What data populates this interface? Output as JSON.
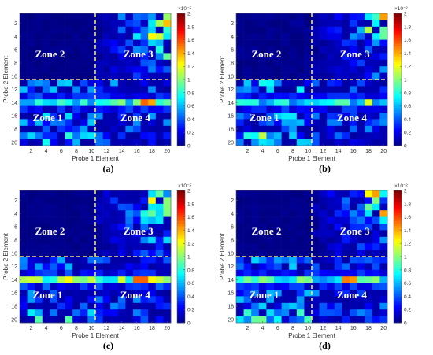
{
  "panels": [
    {
      "caption": "(a)"
    },
    {
      "caption": "(b)"
    },
    {
      "caption": "(c)"
    },
    {
      "caption": "(d)"
    }
  ],
  "chart_data": {
    "type": "heatmap",
    "xlabel": "Probe 1 Element",
    "ylabel": "Probe 2 Element",
    "x_ticks": [
      2,
      4,
      6,
      8,
      10,
      12,
      14,
      16,
      18,
      20
    ],
    "y_ticks": [
      2,
      4,
      6,
      8,
      10,
      12,
      14,
      16,
      18,
      20
    ],
    "grid_size": 20,
    "colorbar": {
      "min": 0,
      "max": 2,
      "ticks": [
        0,
        0.2,
        0.4,
        0.6,
        0.8,
        1,
        1.2,
        1.4,
        1.6,
        1.8,
        2
      ],
      "exponent_label": "×10⁻²",
      "colormap": "jet"
    },
    "divider_x": 10.5,
    "divider_y": 10.5,
    "divider_color": "#f5e76a",
    "zones": [
      {
        "label": "Zone 2",
        "x": 4.5,
        "y": 6.6
      },
      {
        "label": "Zone 3",
        "x": 16.2,
        "y": 6.6
      },
      {
        "label": "Zone 1",
        "x": 4.2,
        "y": 16.2
      },
      {
        "label": "Zone 4",
        "x": 15.8,
        "y": 16.2
      }
    ],
    "panels": [
      {
        "id": "a",
        "hot_rows": [
          14
        ],
        "hot_row_level": 0.45,
        "hot_row_peak_cols": [
          17,
          18
        ],
        "zone3_level": 0.5,
        "zone1_level": 0.25,
        "zone4_level": 0.2,
        "zone2_level": 0.02,
        "seed": 11
      },
      {
        "id": "b",
        "hot_rows": [
          14
        ],
        "hot_row_level": 0.42,
        "hot_row_peak_cols": [
          18
        ],
        "zone3_level": 0.45,
        "zone1_level": 0.28,
        "zone4_level": 0.18,
        "zone2_level": 0.03,
        "seed": 23
      },
      {
        "id": "c",
        "hot_rows": [
          14
        ],
        "hot_row_level": 0.55,
        "hot_row_peak_cols": [
          16,
          17,
          18
        ],
        "zone3_level": 0.5,
        "zone1_level": 0.22,
        "zone4_level": 0.18,
        "zone2_level": 0.02,
        "seed": 37
      },
      {
        "id": "d",
        "hot_rows": [
          14
        ],
        "hot_row_level": 0.45,
        "hot_row_peak_cols": [
          15,
          16
        ],
        "zone3_level": 0.4,
        "zone1_level": 0.25,
        "zone4_level": 0.18,
        "zone2_level": 0.02,
        "seed": 51
      }
    ]
  }
}
